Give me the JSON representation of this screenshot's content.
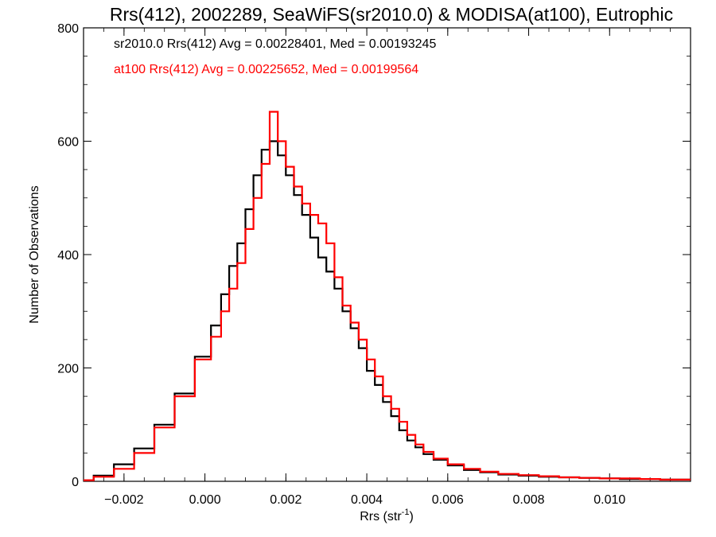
{
  "chart_data": {
    "type": "line",
    "title": "Rrs(412), 2002289, SeaWiFS(sr2010.0) & MODISA(at100), Eutrophic",
    "xlabel": "Rrs (str",
    "xlabel_sup": "-1",
    "xlabel_end": ")",
    "ylabel": "Number of Observations",
    "xlim": [
      -0.003,
      0.012
    ],
    "ylim": [
      0,
      800
    ],
    "x_ticks": [
      -0.002,
      0.0,
      0.002,
      0.004,
      0.006,
      0.008,
      0.01
    ],
    "x_tick_labels": [
      "−0.002",
      "0.000",
      "0.002",
      "0.004",
      "0.006",
      "0.008",
      "0.010"
    ],
    "y_ticks": [
      0,
      200,
      400,
      600,
      800
    ],
    "y_tick_labels": [
      "0",
      "200",
      "400",
      "600",
      "800"
    ],
    "grid": false,
    "annotations": [
      {
        "text": "sr2010.0 Rrs(412) Avg = 0.00228401, Med = 0.00193245",
        "color": "#000000"
      },
      {
        "text": "at100 Rrs(412) Avg = 0.00225652, Med = 0.00199564",
        "color": "#ff0000"
      }
    ],
    "series": [
      {
        "name": "sr2010.0",
        "color": "#000000",
        "points": [
          [
            -0.003,
            2
          ],
          [
            -0.0025,
            10
          ],
          [
            -0.002,
            30
          ],
          [
            -0.0015,
            58
          ],
          [
            -0.001,
            100
          ],
          [
            -0.0005,
            155
          ],
          [
            0.0,
            220
          ],
          [
            0.0003,
            275
          ],
          [
            0.0005,
            330
          ],
          [
            0.0007,
            380
          ],
          [
            0.0009,
            420
          ],
          [
            0.0011,
            480
          ],
          [
            0.0013,
            540
          ],
          [
            0.0015,
            585
          ],
          [
            0.0017,
            600
          ],
          [
            0.0019,
            575
          ],
          [
            0.0021,
            540
          ],
          [
            0.0023,
            505
          ],
          [
            0.0025,
            470
          ],
          [
            0.0027,
            430
          ],
          [
            0.0029,
            395
          ],
          [
            0.0031,
            370
          ],
          [
            0.0033,
            340
          ],
          [
            0.0035,
            300
          ],
          [
            0.0037,
            270
          ],
          [
            0.0039,
            235
          ],
          [
            0.0041,
            195
          ],
          [
            0.0043,
            170
          ],
          [
            0.0045,
            140
          ],
          [
            0.0047,
            115
          ],
          [
            0.0049,
            90
          ],
          [
            0.0051,
            72
          ],
          [
            0.0053,
            60
          ],
          [
            0.0055,
            48
          ],
          [
            0.0058,
            38
          ],
          [
            0.0062,
            28
          ],
          [
            0.0066,
            20
          ],
          [
            0.007,
            16
          ],
          [
            0.0075,
            12
          ],
          [
            0.008,
            10
          ],
          [
            0.0085,
            8
          ],
          [
            0.009,
            7
          ],
          [
            0.0095,
            6
          ],
          [
            0.01,
            5
          ],
          [
            0.0105,
            4
          ],
          [
            0.011,
            4
          ],
          [
            0.0115,
            3
          ],
          [
            0.012,
            3
          ]
        ]
      },
      {
        "name": "at100",
        "color": "#ff0000",
        "points": [
          [
            -0.003,
            2
          ],
          [
            -0.0025,
            8
          ],
          [
            -0.002,
            22
          ],
          [
            -0.0015,
            50
          ],
          [
            -0.001,
            95
          ],
          [
            -0.0005,
            150
          ],
          [
            0.0,
            215
          ],
          [
            0.0003,
            255
          ],
          [
            0.0005,
            300
          ],
          [
            0.0007,
            340
          ],
          [
            0.0009,
            385
          ],
          [
            0.0011,
            445
          ],
          [
            0.0013,
            500
          ],
          [
            0.0015,
            560
          ],
          [
            0.0017,
            652
          ],
          [
            0.0019,
            600
          ],
          [
            0.0021,
            555
          ],
          [
            0.0023,
            520
          ],
          [
            0.0025,
            490
          ],
          [
            0.0027,
            470
          ],
          [
            0.0029,
            455
          ],
          [
            0.0031,
            420
          ],
          [
            0.0033,
            360
          ],
          [
            0.0035,
            310
          ],
          [
            0.0037,
            280
          ],
          [
            0.0039,
            250
          ],
          [
            0.0041,
            215
          ],
          [
            0.0043,
            185
          ],
          [
            0.0045,
            150
          ],
          [
            0.0047,
            128
          ],
          [
            0.0049,
            105
          ],
          [
            0.0051,
            82
          ],
          [
            0.0053,
            65
          ],
          [
            0.0055,
            52
          ],
          [
            0.0058,
            40
          ],
          [
            0.0062,
            30
          ],
          [
            0.0066,
            22
          ],
          [
            0.007,
            17
          ],
          [
            0.0075,
            13
          ],
          [
            0.008,
            11
          ],
          [
            0.0085,
            9
          ],
          [
            0.009,
            7
          ],
          [
            0.0095,
            6
          ],
          [
            0.01,
            5
          ],
          [
            0.0105,
            5
          ],
          [
            0.011,
            4
          ],
          [
            0.0115,
            3
          ],
          [
            0.012,
            3
          ]
        ]
      }
    ]
  }
}
